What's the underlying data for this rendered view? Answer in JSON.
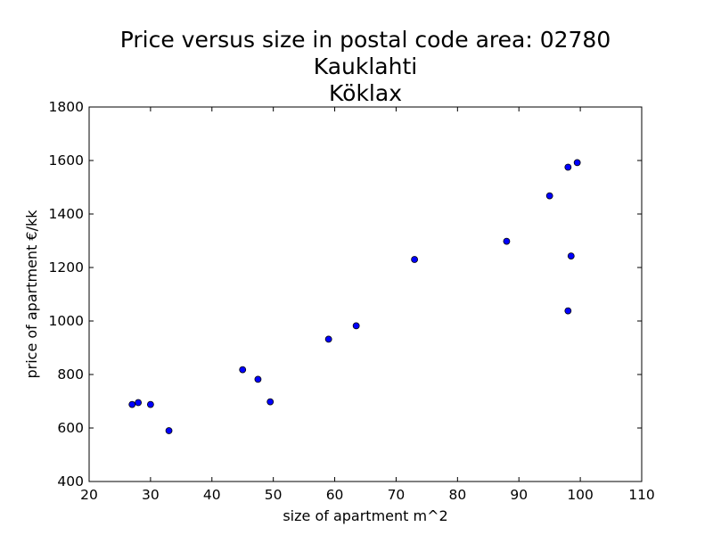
{
  "chart_data": {
    "type": "scatter",
    "title_lines": [
      "Price versus size in postal code area: 02780",
      "Kauklahti",
      "Köklax"
    ],
    "xlabel": "size of apartment m^2",
    "ylabel": "price of apartment €/kk",
    "xlim": [
      20,
      110
    ],
    "ylim": [
      400,
      1800
    ],
    "xticks": [
      20,
      30,
      40,
      50,
      60,
      70,
      80,
      90,
      100,
      110
    ],
    "yticks": [
      400,
      600,
      800,
      1000,
      1200,
      1400,
      1600,
      1800
    ],
    "grid": false,
    "marker_color": "#0000ff",
    "points": [
      {
        "x": 27,
        "y": 688
      },
      {
        "x": 28,
        "y": 695
      },
      {
        "x": 30,
        "y": 688
      },
      {
        "x": 33,
        "y": 590
      },
      {
        "x": 45,
        "y": 818
      },
      {
        "x": 47.5,
        "y": 782
      },
      {
        "x": 49.5,
        "y": 698
      },
      {
        "x": 59,
        "y": 932
      },
      {
        "x": 63.5,
        "y": 982
      },
      {
        "x": 73,
        "y": 1230
      },
      {
        "x": 88,
        "y": 1298
      },
      {
        "x": 95,
        "y": 1468
      },
      {
        "x": 98,
        "y": 1575
      },
      {
        "x": 99.5,
        "y": 1592
      },
      {
        "x": 98.5,
        "y": 1243
      },
      {
        "x": 98,
        "y": 1038
      }
    ]
  }
}
